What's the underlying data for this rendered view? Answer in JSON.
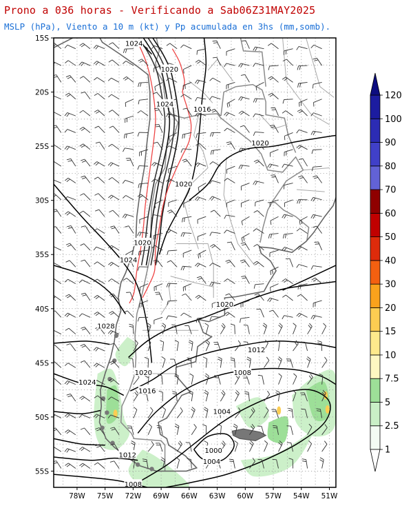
{
  "header": {
    "title": "Prono a 036 horas - Verificando a Sab06Z31MAY2025",
    "subtitle": "MSLP (hPa), Viento a 10 m (kt) y Pp acumulada en 3hs (mm,somb)."
  },
  "map": {
    "lat_range": [
      -56.5,
      -15
    ],
    "lon_range": [
      -80.5,
      -50.3
    ],
    "lat_ticks": [
      {
        "lat": -15,
        "label": "15S"
      },
      {
        "lat": -20,
        "label": "20S"
      },
      {
        "lat": -25,
        "label": "25S"
      },
      {
        "lat": -30,
        "label": "30S"
      },
      {
        "lat": -35,
        "label": "35S"
      },
      {
        "lat": -40,
        "label": "40S"
      },
      {
        "lat": -45,
        "label": "45S"
      },
      {
        "lat": -50,
        "label": "50S"
      },
      {
        "lat": -55,
        "label": "55S"
      }
    ],
    "lon_ticks": [
      {
        "lon": -78,
        "label": "78W"
      },
      {
        "lon": -75,
        "label": "75W"
      },
      {
        "lon": -72,
        "label": "72W"
      },
      {
        "lon": -69,
        "label": "69W"
      },
      {
        "lon": -66,
        "label": "66W"
      },
      {
        "lon": -63,
        "label": "63W"
      },
      {
        "lon": -60,
        "label": "60W"
      },
      {
        "lon": -57,
        "label": "57W"
      },
      {
        "lon": -54,
        "label": "54W"
      },
      {
        "lon": -51,
        "label": "51W"
      }
    ],
    "isobar_labels": [
      {
        "text": "1024",
        "lon": -71.9,
        "lat": -15.5
      },
      {
        "text": "1020",
        "lon": -68.1,
        "lat": -17.9
      },
      {
        "text": "1024",
        "lon": -68.6,
        "lat": -21.1
      },
      {
        "text": "1016",
        "lon": -64.6,
        "lat": -21.6
      },
      {
        "text": "1020",
        "lon": -58.4,
        "lat": -24.7
      },
      {
        "text": "1020",
        "lon": -66.6,
        "lat": -28.5
      },
      {
        "text": "1020",
        "lon": -71.0,
        "lat": -33.9
      },
      {
        "text": "1024",
        "lon": -72.5,
        "lat": -35.5
      },
      {
        "text": "1020",
        "lon": -62.2,
        "lat": -39.6
      },
      {
        "text": "1028",
        "lon": -74.9,
        "lat": -41.6
      },
      {
        "text": "1012",
        "lon": -58.8,
        "lat": -43.8
      },
      {
        "text": "1008",
        "lon": -60.3,
        "lat": -45.9
      },
      {
        "text": "1020",
        "lon": -70.9,
        "lat": -45.9
      },
      {
        "text": "1024",
        "lon": -76.9,
        "lat": -46.8
      },
      {
        "text": "1016",
        "lon": -70.5,
        "lat": -47.6
      },
      {
        "text": "1004",
        "lon": -62.5,
        "lat": -49.5
      },
      {
        "text": "1000",
        "lon": -63.4,
        "lat": -53.1
      },
      {
        "text": "1012",
        "lon": -72.6,
        "lat": -53.5
      },
      {
        "text": "1004",
        "lon": -63.6,
        "lat": -54.1
      },
      {
        "text": "1008",
        "lon": -72.0,
        "lat": -56.2
      }
    ]
  },
  "colorbar": {
    "labels": [
      "1",
      "2.5",
      "5",
      "7.5",
      "10",
      "15",
      "20",
      "30",
      "40",
      "50",
      "60",
      "70",
      "80",
      "90",
      "100",
      "120"
    ],
    "colors": [
      "#f3fbf3",
      "#c9efc6",
      "#9ddf98",
      "#fdf7c2",
      "#fde98c",
      "#fccd52",
      "#f9a21c",
      "#f36010",
      "#de2b0b",
      "#c00000",
      "#8f0000",
      "#6262d6",
      "#4040c8",
      "#2c2cb4",
      "#1c1ca0",
      "#0d0d80"
    ]
  }
}
